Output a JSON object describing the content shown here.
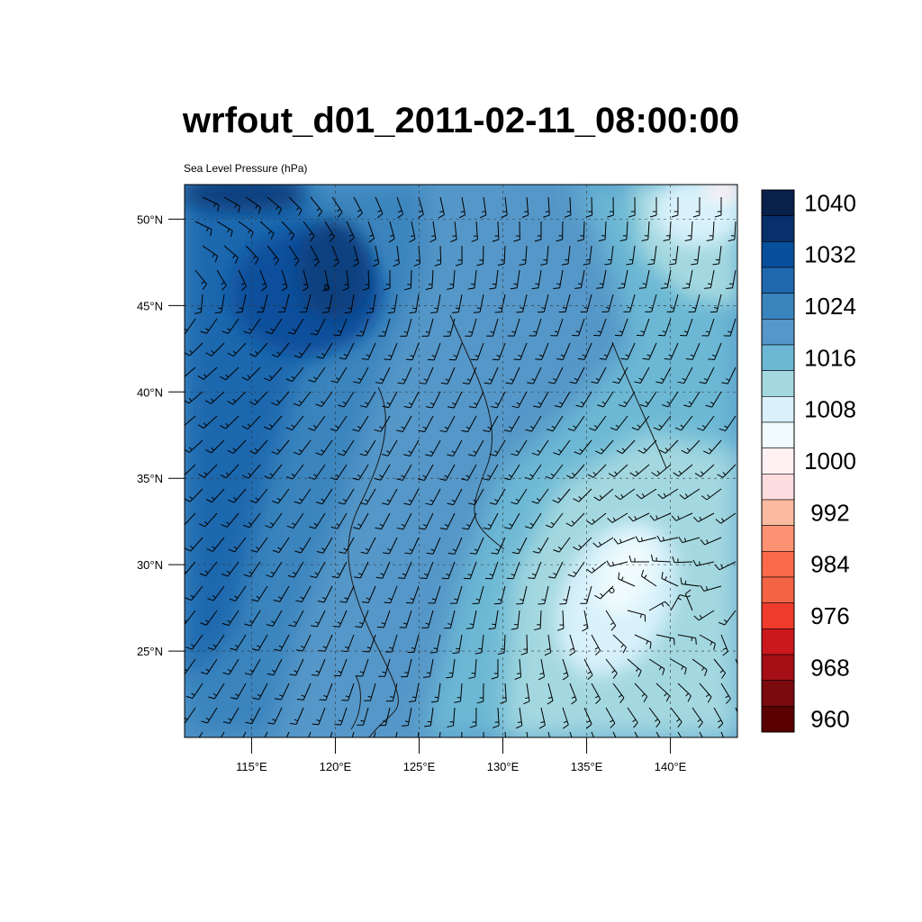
{
  "title": "wrfout_d01_2011-02-11_08:00:00",
  "subtitle": "Sea Level Pressure (hPa)",
  "map": {
    "lon_range": [
      111,
      144
    ],
    "lat_range": [
      20,
      52
    ],
    "lat_ticks": [
      {
        "value": 25,
        "label": "25°N"
      },
      {
        "value": 30,
        "label": "30°N"
      },
      {
        "value": 35,
        "label": "35°N"
      },
      {
        "value": 40,
        "label": "40°N"
      },
      {
        "value": 45,
        "label": "45°N"
      },
      {
        "value": 50,
        "label": "50°N"
      }
    ],
    "lon_ticks": [
      {
        "value": 115,
        "label": "115°E"
      },
      {
        "value": 120,
        "label": "120°E"
      },
      {
        "value": 125,
        "label": "125°E"
      },
      {
        "value": 130,
        "label": "130°E"
      },
      {
        "value": 135,
        "label": "135°E"
      },
      {
        "value": 140,
        "label": "140°E"
      }
    ],
    "field": "sea level pressure",
    "overlay": "wind barbs",
    "pressure_centers": [
      {
        "type": "high",
        "lon": 119.5,
        "lat": 46,
        "value_approx": 1036
      },
      {
        "type": "low",
        "lon": 136.5,
        "lat": 28.5,
        "value_approx": 1006
      },
      {
        "type": "low",
        "lon": 143,
        "lat": 52,
        "value_approx": 1000
      }
    ]
  },
  "colorbar": {
    "levels": [
      {
        "label": "1040",
        "color": "#08204a"
      },
      {
        "label": "",
        "color": "#08306b"
      },
      {
        "label": "1032",
        "color": "#08509c"
      },
      {
        "label": "",
        "color": "#1f68ae"
      },
      {
        "label": "1024",
        "color": "#3a84bd"
      },
      {
        "label": "",
        "color": "#5597c8"
      },
      {
        "label": "1016",
        "color": "#6cb8d4"
      },
      {
        "label": "",
        "color": "#a4d8e0"
      },
      {
        "label": "1008",
        "color": "#d8f1fb"
      },
      {
        "label": "",
        "color": "#f0fbfd"
      },
      {
        "label": "1000",
        "color": "#fff0f3"
      },
      {
        "label": "",
        "color": "#fddde0"
      },
      {
        "label": "992",
        "color": "#fcbba1"
      },
      {
        "label": "",
        "color": "#fc9272"
      },
      {
        "label": "984",
        "color": "#fb6a4a"
      },
      {
        "label": "",
        "color": "#f46444"
      },
      {
        "label": "976",
        "color": "#ef3b2c"
      },
      {
        "label": "",
        "color": "#cb181d"
      },
      {
        "label": "968",
        "color": "#a50f15"
      },
      {
        "label": "",
        "color": "#7a0a0e"
      },
      {
        "label": "960",
        "color": "#5a0000"
      }
    ]
  }
}
